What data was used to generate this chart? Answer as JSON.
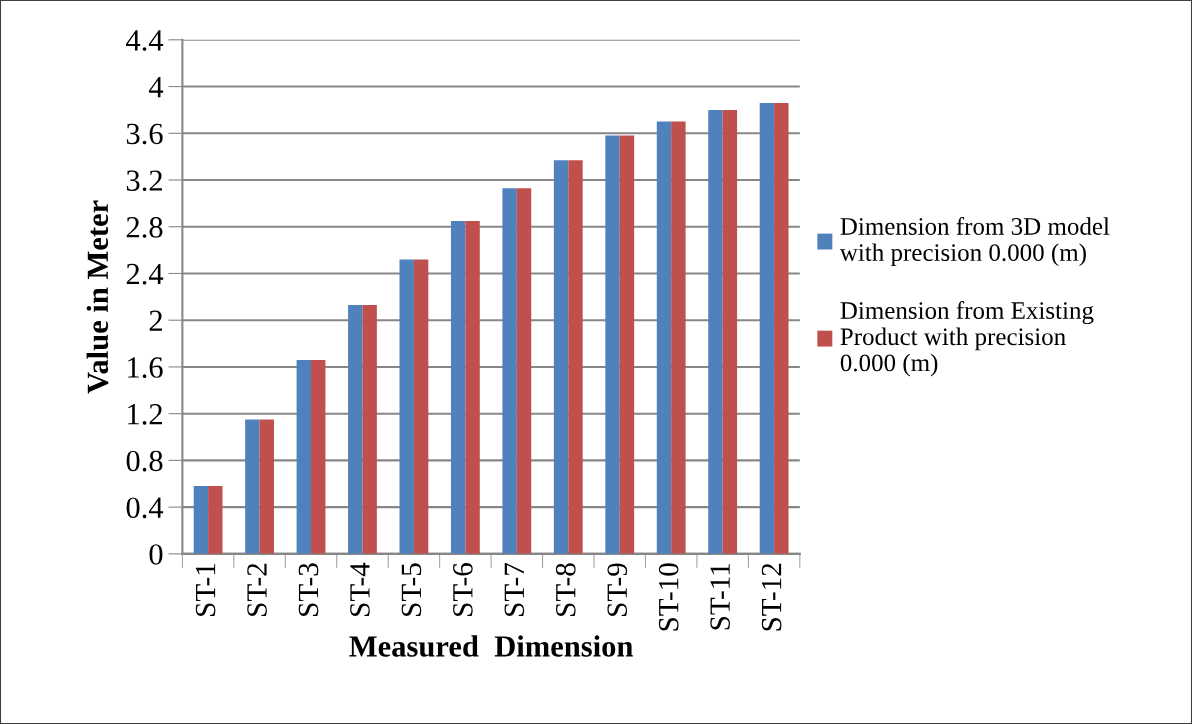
{
  "chart_data": {
    "type": "bar",
    "xlabel": "Measured  Dimension",
    "ylabel": "Value in Meter",
    "categories": [
      "ST-1",
      "ST-2",
      "ST-3",
      "ST-4",
      "ST-5",
      "ST-6",
      "ST-7",
      "ST-8",
      "ST-9",
      "ST-10",
      "ST-11",
      "ST-12"
    ],
    "series": [
      {
        "name": "Dimension from 3D model\nwith precision 0.000 (m)",
        "color": "#4f81bd",
        "values": [
          0.58,
          1.15,
          1.66,
          2.13,
          2.52,
          2.85,
          3.13,
          3.37,
          3.58,
          3.7,
          3.8,
          3.86
        ]
      },
      {
        "name": "Dimension from Existing\nProduct with precision\n0.000 (m)",
        "color": "#c0504d",
        "values": [
          0.58,
          1.15,
          1.66,
          2.13,
          2.52,
          2.85,
          3.13,
          3.37,
          3.58,
          3.7,
          3.8,
          3.86
        ]
      }
    ],
    "ylim": [
      0,
      4.4
    ],
    "yticks": [
      0,
      0.4,
      0.8,
      1.2,
      1.6,
      2,
      2.4,
      2.8,
      3.2,
      3.6,
      4,
      4.4
    ],
    "grid": "y",
    "legend": "right"
  }
}
